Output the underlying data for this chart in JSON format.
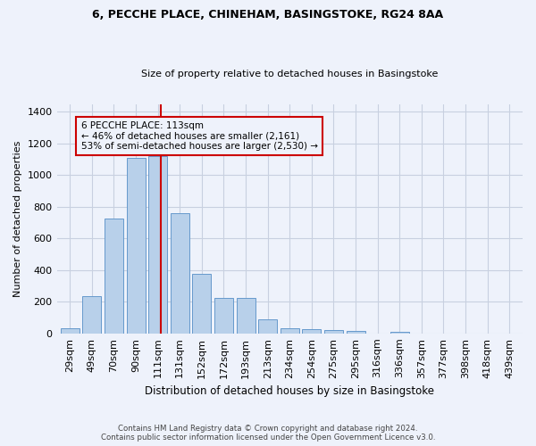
{
  "title_line1": "6, PECCHE PLACE, CHINEHAM, BASINGSTOKE, RG24 8AA",
  "title_line2": "Size of property relative to detached houses in Basingstoke",
  "xlabel": "Distribution of detached houses by size in Basingstoke",
  "ylabel": "Number of detached properties",
  "categories": [
    "29sqm",
    "49sqm",
    "70sqm",
    "90sqm",
    "111sqm",
    "131sqm",
    "152sqm",
    "172sqm",
    "193sqm",
    "213sqm",
    "234sqm",
    "254sqm",
    "275sqm",
    "295sqm",
    "316sqm",
    "336sqm",
    "357sqm",
    "377sqm",
    "398sqm",
    "418sqm",
    "439sqm"
  ],
  "values": [
    30,
    235,
    725,
    1110,
    1120,
    760,
    375,
    225,
    225,
    90,
    30,
    25,
    22,
    17,
    0,
    12,
    0,
    0,
    0,
    0,
    0
  ],
  "bar_color": "#b8d0ea",
  "bar_edge_color": "#6699cc",
  "annotation_title": "6 PECCHE PLACE: 113sqm",
  "annotation_line2": "← 46% of detached houses are smaller (2,161)",
  "annotation_line3": "53% of semi-detached houses are larger (2,530) →",
  "annotation_color": "#cc0000",
  "red_line_x": 4.15,
  "ylim": [
    0,
    1450
  ],
  "yticks": [
    0,
    200,
    400,
    600,
    800,
    1000,
    1200,
    1400
  ],
  "footer_line1": "Contains HM Land Registry data © Crown copyright and database right 2024.",
  "footer_line2": "Contains public sector information licensed under the Open Government Licence v3.0.",
  "background_color": "#eef2fb",
  "grid_color": "#c8d0e0"
}
